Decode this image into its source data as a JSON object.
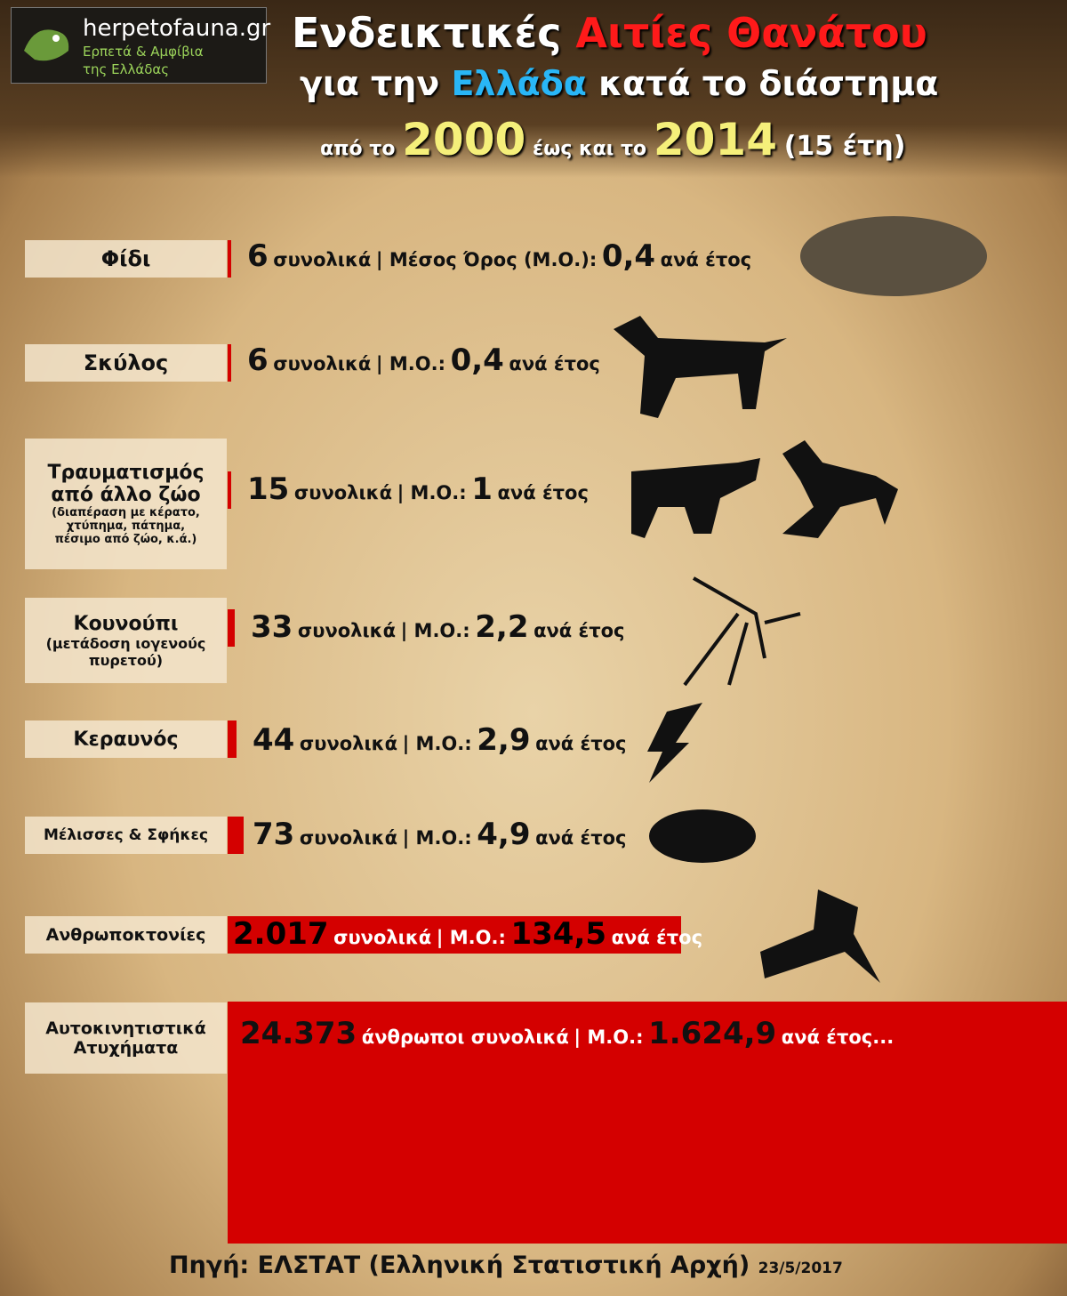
{
  "header": {
    "logo_title": "herpetofauna.gr",
    "logo_subtitle": [
      "Ερπετά & Αμφίβια",
      "της Ελλάδας"
    ],
    "title_line1": [
      "Ενδεικτικές",
      "Αιτίες Θανάτου"
    ],
    "title_line2": [
      "για την",
      "Ελλάδα",
      "κατά το διάστημα"
    ],
    "title_line3": [
      "από το",
      "2000",
      "έως και το",
      "2014",
      "(15 έτη)"
    ]
  },
  "rows": [
    {
      "label": "Φίδι",
      "total": "6",
      "total_word": "συνολικά",
      "avg_label": "| Μέσος Όρος (Μ.Ο.):",
      "avg": "0,4",
      "avg_unit": "ανά έτος"
    },
    {
      "label": "Σκύλος",
      "total": "6",
      "total_word": "συνολικά",
      "avg_label": "| Μ.Ο.:",
      "avg": "0,4",
      "avg_unit": "ανά έτος"
    },
    {
      "label": "Τραυματισμός από άλλο ζώο",
      "sublabel": "(διαπέραση με κέρατο, χτύπημα, πάτημα, πέσιμο από ζώο, κ.ά.)",
      "total": "15",
      "total_word": "συνολικά",
      "avg_label": "| Μ.Ο.:",
      "avg": "1",
      "avg_unit": "ανά έτος"
    },
    {
      "label": "Κουνούπι",
      "sublabel": "(μετάδοση ιογενούς πυρετού)",
      "total": "33",
      "total_word": "συνολικά",
      "avg_label": "| Μ.Ο.:",
      "avg": "2,2",
      "avg_unit": "ανά έτος"
    },
    {
      "label": "Κεραυνός",
      "total": "44",
      "total_word": "συνολικά",
      "avg_label": "| Μ.Ο.:",
      "avg": "2,9",
      "avg_unit": "ανά έτος"
    },
    {
      "label": "Μέλισσες & Σφήκες",
      "total": "73",
      "total_word": "συνολικά",
      "avg_label": "| Μ.Ο.:",
      "avg": "4,9",
      "avg_unit": "ανά έτος"
    },
    {
      "label": "Ανθρωποκτονίες",
      "total": "2.017",
      "total_word": "συνολικά",
      "avg_label": "| Μ.Ο.:",
      "avg": "134,5",
      "avg_unit": "ανά έτος"
    },
    {
      "label": "Αυτοκινητιστικά Ατυχήματα",
      "total": "24.373",
      "total_word": "άνθρωποι συνολικά",
      "avg_label": "| Μ.Ο.:",
      "avg": "1.624,9",
      "avg_unit": "ανά έτος..."
    }
  ],
  "footer": {
    "source": "Πηγή: ΕΛΣΤΑΤ (Ελληνική Στατιστική Αρχή)",
    "date": "23/5/2017"
  }
}
